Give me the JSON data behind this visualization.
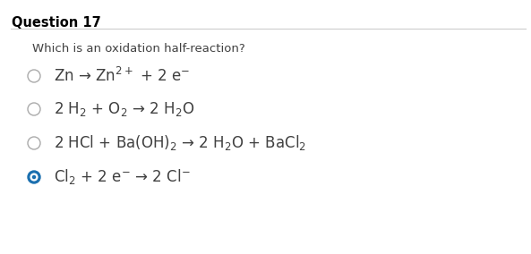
{
  "title": "Question 17",
  "question": "Which is an oxidation half-reaction?",
  "background_color": "#ffffff",
  "title_color": "#000000",
  "question_color": "#404040",
  "option_color": "#404040",
  "title_fontsize": 10.5,
  "question_fontsize": 9.5,
  "option_fontsize": 12,
  "options": [
    {
      "label": "Zn → Zn$^{2+}$ + 2 e$^{-}$",
      "selected": false
    },
    {
      "label": "2 H$_2$ + O$_2$ → 2 H$_2$O",
      "selected": false
    },
    {
      "label": "2 HCl + Ba(OH)$_2$ → 2 H$_2$O + BaCl$_2$",
      "selected": false
    },
    {
      "label": "Cl$_2$ + 2 e$^{-}$ → 2 Cl$^{-}$",
      "selected": true
    }
  ],
  "radio_unselected_color": "#aaaaaa",
  "radio_selected_color": "#1a6faf",
  "divider_color": "#cccccc",
  "fig_width": 5.93,
  "fig_height": 2.84,
  "dpi": 100
}
